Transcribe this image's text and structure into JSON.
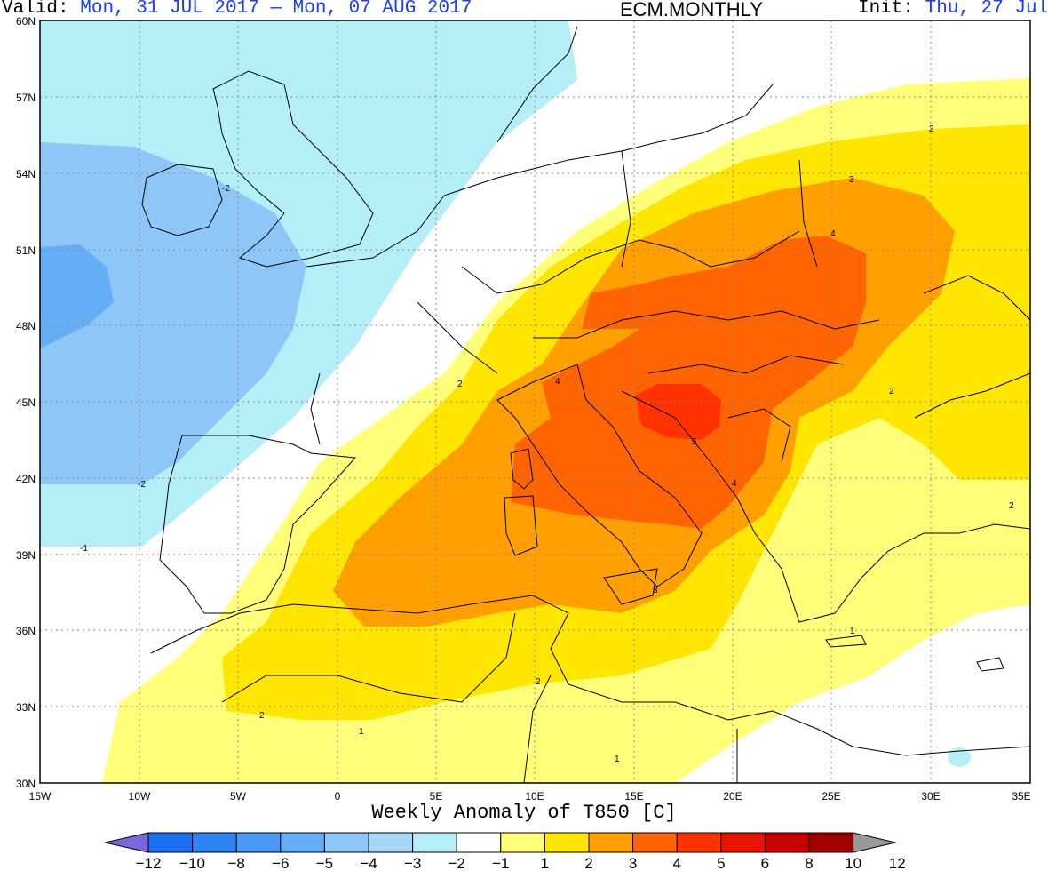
{
  "header": {
    "valid_label": "Valid:",
    "valid_range": "Mon, 31 JUL 2017 — Mon, 07 AUG 2017",
    "product": "ECM.MONTHLY",
    "init_label": "Init:",
    "init_date": "Thu, 27 Jul"
  },
  "map": {
    "lat_labels": [
      "60N",
      "57N",
      "54N",
      "51N",
      "48N",
      "45N",
      "42N",
      "39N",
      "36N",
      "33N",
      "30N"
    ],
    "lon_labels": [
      "15W",
      "10W",
      "5W",
      "0",
      "5E",
      "10E",
      "15E",
      "20E",
      "25E",
      "30E",
      "35E"
    ],
    "contour_labels": [
      "-2",
      "-2",
      "-1",
      "2",
      "2",
      "2",
      "1",
      "1",
      "2",
      "3",
      "4",
      "4",
      "5",
      "4",
      "2",
      "2",
      "3",
      "1"
    ],
    "colors": {
      "n12": "#6a5ddc",
      "n10": "#1e6ff0",
      "n8": "#2f86f2",
      "n6": "#4a9af4",
      "n5": "#64aef6",
      "n4": "#8ec6f7",
      "n3": "#a4d8f4",
      "n2": "#b4eef6",
      "n1": "#ffffff",
      "p1": "#ffff7a",
      "p2": "#ffe600",
      "p3": "#ffa000",
      "p4": "#ff6400",
      "p5": "#ff3200",
      "p6": "#e61400",
      "p8": "#c80000",
      "p10": "#a00000",
      "p12": "#999999"
    }
  },
  "colorbar": {
    "title": "Weekly Anomaly of T850 [C]",
    "ticks": [
      "−12",
      "−10",
      "−8",
      "−6",
      "−5",
      "−4",
      "−3",
      "−2",
      "−1",
      "1",
      "2",
      "3",
      "4",
      "5",
      "6",
      "8",
      "10",
      "12"
    ],
    "colors": [
      "#7a67e0",
      "#1e6ff0",
      "#2f86f2",
      "#4a9af4",
      "#64aef6",
      "#8ec6f7",
      "#a4d8f4",
      "#b4eef6",
      "#ffffff",
      "#ffff7a",
      "#ffe600",
      "#ffa000",
      "#ff6400",
      "#ff3200",
      "#e61400",
      "#c80000",
      "#a00000"
    ]
  }
}
